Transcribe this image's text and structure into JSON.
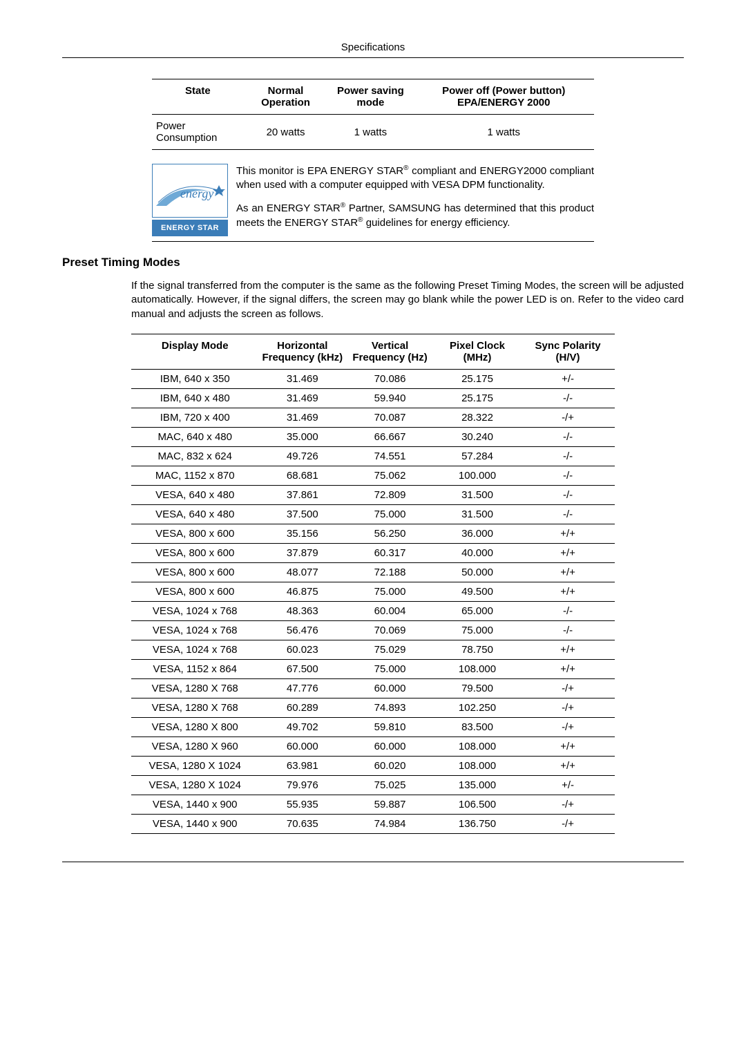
{
  "header": {
    "title": "Specifications"
  },
  "power_table": {
    "columns": [
      "State",
      "Normal Operation",
      "Power saving mode",
      "Power off (Power button) EPA/ENERGY 2000"
    ],
    "row": {
      "label": "Power Consumption",
      "values": [
        "20 watts",
        "1 watts",
        "1 watts"
      ]
    }
  },
  "energy": {
    "logo_script": "energy",
    "logo_bar": "ENERGY STAR",
    "p1a": "This monitor is EPA ENERGY STAR",
    "p1b": " compliant and ENERGY2000 compliant when used with a computer equipped with VESA DPM functionality.",
    "p2a": "As an ENERGY STAR",
    "p2b": " Partner, SAMSUNG has determined that this product meets the ENERGY STAR",
    "p2c": " guidelines for energy efficiency.",
    "reg": "®"
  },
  "preset": {
    "heading": "Preset Timing Modes",
    "intro": "If the signal transferred from the computer is the same as the following Preset Timing Modes, the screen will be adjusted automatically. However, if the signal differs, the screen may go blank while the power LED is on. Refer to the video card manual and adjusts the screen as follows."
  },
  "timing_table": {
    "columns": [
      "Display Mode",
      "Horizontal Frequency (kHz)",
      "Vertical Frequency (Hz)",
      "Pixel Clock (MHz)",
      "Sync Polarity (H/V)"
    ],
    "rows": [
      [
        "IBM, 640 x 350",
        "31.469",
        "70.086",
        "25.175",
        "+/-"
      ],
      [
        "IBM, 640 x 480",
        "31.469",
        "59.940",
        "25.175",
        "-/-"
      ],
      [
        "IBM, 720 x 400",
        "31.469",
        "70.087",
        "28.322",
        "-/+"
      ],
      [
        "MAC, 640 x 480",
        "35.000",
        "66.667",
        "30.240",
        "-/-"
      ],
      [
        "MAC, 832 x 624",
        "49.726",
        "74.551",
        "57.284",
        "-/-"
      ],
      [
        "MAC, 1152 x 870",
        "68.681",
        "75.062",
        "100.000",
        "-/-"
      ],
      [
        "VESA, 640 x 480",
        "37.861",
        "72.809",
        "31.500",
        "-/-"
      ],
      [
        "VESA, 640 x 480",
        "37.500",
        "75.000",
        "31.500",
        "-/-"
      ],
      [
        "VESA, 800 x 600",
        "35.156",
        "56.250",
        "36.000",
        "+/+"
      ],
      [
        "VESA, 800 x 600",
        "37.879",
        "60.317",
        "40.000",
        "+/+"
      ],
      [
        "VESA, 800 x 600",
        "48.077",
        "72.188",
        "50.000",
        "+/+"
      ],
      [
        "VESA, 800 x 600",
        "46.875",
        "75.000",
        "49.500",
        "+/+"
      ],
      [
        "VESA, 1024 x 768",
        "48.363",
        "60.004",
        "65.000",
        "-/-"
      ],
      [
        "VESA, 1024 x 768",
        "56.476",
        "70.069",
        "75.000",
        "-/-"
      ],
      [
        "VESA, 1024 x 768",
        "60.023",
        "75.029",
        "78.750",
        "+/+"
      ],
      [
        "VESA, 1152 x 864",
        "67.500",
        "75.000",
        "108.000",
        "+/+"
      ],
      [
        "VESA, 1280 X 768",
        "47.776",
        "60.000",
        "79.500",
        "-/+"
      ],
      [
        "VESA, 1280 X 768",
        "60.289",
        "74.893",
        "102.250",
        "-/+"
      ],
      [
        "VESA, 1280 X 800",
        "49.702",
        "59.810",
        "83.500",
        "-/+"
      ],
      [
        "VESA, 1280 X 960",
        "60.000",
        "60.000",
        "108.000",
        "+/+"
      ],
      [
        "VESA, 1280 X 1024",
        "63.981",
        "60.020",
        "108.000",
        "+/+"
      ],
      [
        "VESA, 1280 X 1024",
        "79.976",
        "75.025",
        "135.000",
        "+/-"
      ],
      [
        "VESA, 1440 x 900",
        "55.935",
        "59.887",
        "106.500",
        "-/+"
      ],
      [
        "VESA, 1440 x 900",
        "70.635",
        "74.984",
        "136.750",
        "-/+"
      ]
    ]
  }
}
